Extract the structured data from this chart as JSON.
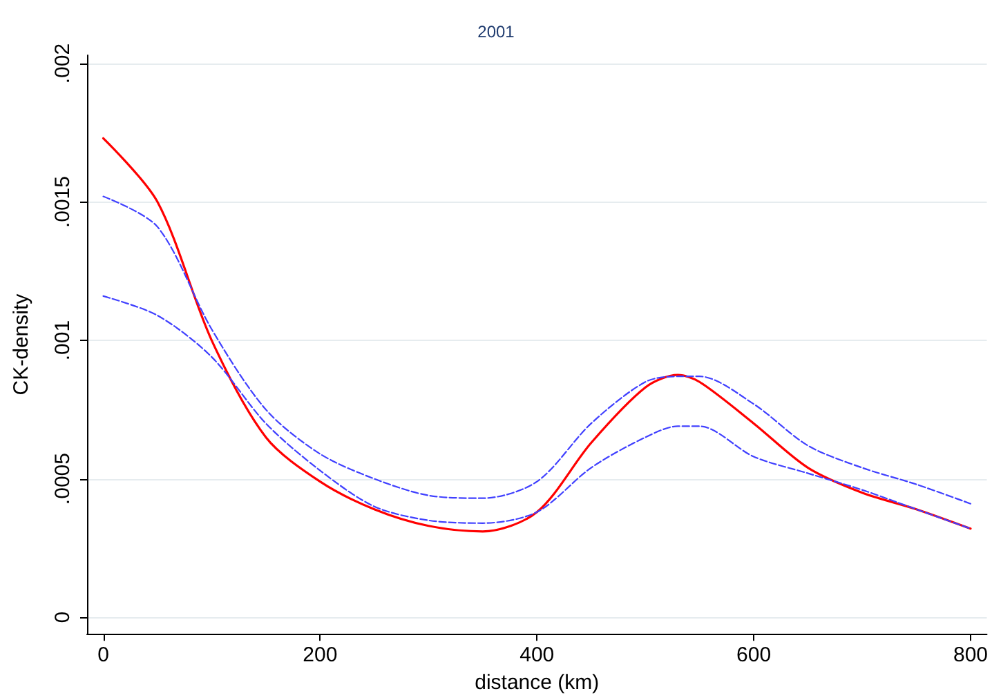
{
  "chart_data": {
    "type": "line",
    "title": "2001",
    "xlabel": "distance (km)",
    "ylabel": "CK-density",
    "x": [
      0,
      50,
      100,
      150,
      200,
      250,
      300,
      350,
      400,
      450,
      500,
      530,
      550,
      600,
      650,
      700,
      750,
      800
    ],
    "series": [
      {
        "color": "#4040ff",
        "line_style": "dashed",
        "values": [
          0.00152,
          0.00141,
          0.00104,
          0.00075,
          0.00059,
          0.0005,
          0.00044,
          0.00043,
          0.00049,
          0.0007,
          0.00085,
          0.00087,
          0.00087,
          0.00077,
          0.00062,
          0.00054,
          0.00048,
          0.00041
        ]
      },
      {
        "color": "#4040ff",
        "line_style": "dashed",
        "values": [
          0.00116,
          0.00109,
          0.00094,
          0.0007,
          0.00053,
          0.0004,
          0.00035,
          0.00034,
          0.00038,
          0.00054,
          0.00065,
          0.00069,
          0.00069,
          0.00058,
          0.00052,
          0.00046,
          0.00039,
          0.00032
        ]
      },
      {
        "color": "#ff0000",
        "line_style": "solid",
        "values": [
          0.00173,
          0.0015,
          0.001,
          0.00065,
          0.00049,
          0.00039,
          0.00033,
          0.00031,
          0.00038,
          0.00063,
          0.00083,
          0.000875,
          0.00085,
          0.0007,
          0.00054,
          0.00045,
          0.00039,
          0.00032
        ]
      }
    ],
    "xlim": [
      -15,
      815
    ],
    "xticks": [
      0,
      200,
      400,
      600,
      800
    ],
    "ylim": [
      -6e-05,
      0.00203
    ],
    "yticks": [
      {
        "value": 0,
        "label": "0"
      },
      {
        "value": 0.0005,
        "label": ".0005"
      },
      {
        "value": 0.001,
        "label": ".001"
      },
      {
        "value": 0.0015,
        "label": ".0015"
      },
      {
        "value": 0.002,
        "label": ".002"
      }
    ],
    "grid": "y",
    "marker": "none"
  }
}
